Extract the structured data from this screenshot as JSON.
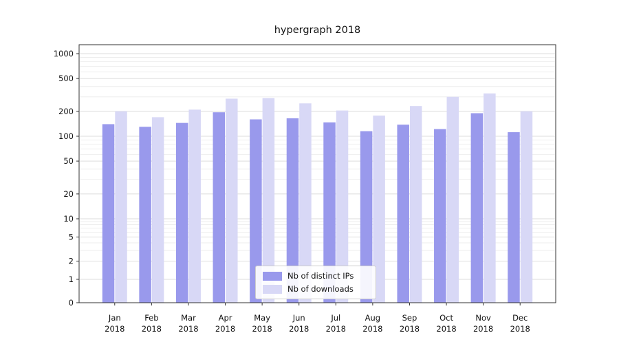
{
  "chart_data": {
    "type": "bar",
    "title": "hypergraph 2018",
    "categories": [
      "Jan",
      "Feb",
      "Mar",
      "Apr",
      "May",
      "Jun",
      "Jul",
      "Aug",
      "Sep",
      "Oct",
      "Nov",
      "Dec"
    ],
    "year_label": "2018",
    "series": [
      {
        "name": "Nb of distinct IPs",
        "color": "#9999ec",
        "values": [
          140,
          130,
          145,
          195,
          160,
          165,
          147,
          115,
          138,
          122,
          190,
          112
        ]
      },
      {
        "name": "Nb of downloads",
        "color": "#d8d8f6",
        "values": [
          200,
          170,
          210,
          285,
          290,
          250,
          205,
          178,
          232,
          300,
          330,
          200
        ]
      }
    ],
    "yaxis": {
      "scale": "symlog",
      "ticks": [
        0,
        1,
        2,
        5,
        10,
        20,
        50,
        100,
        200,
        500,
        1000
      ],
      "minor_ticks": [
        3,
        4,
        6,
        7,
        8,
        9,
        30,
        40,
        60,
        70,
        80,
        90,
        300,
        400,
        600,
        700,
        800,
        900
      ],
      "range": [
        0,
        1000
      ]
    },
    "grid": true,
    "legend_position": "lower center"
  }
}
